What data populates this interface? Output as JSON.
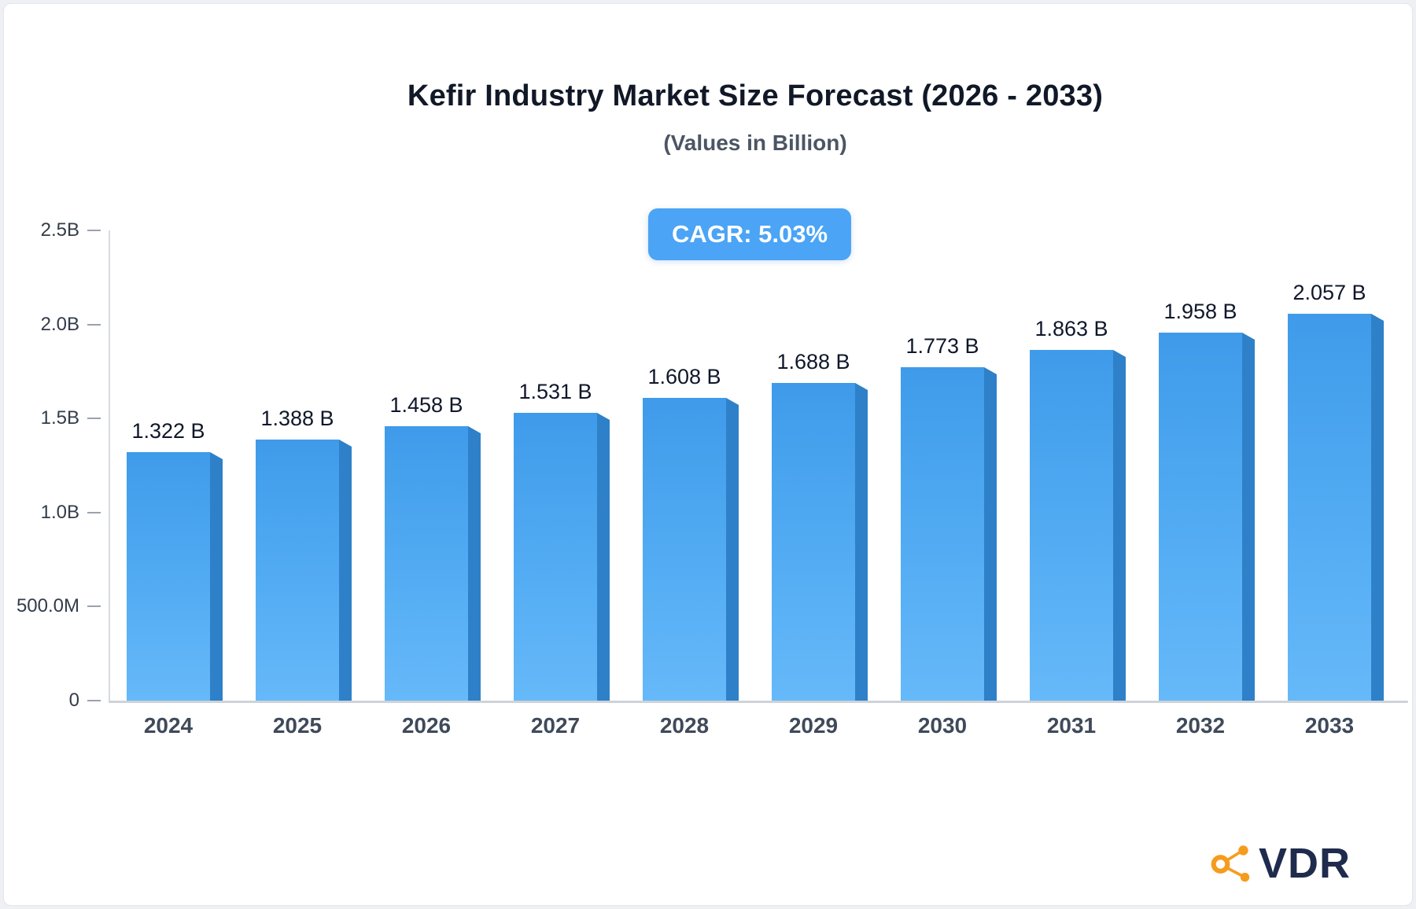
{
  "header": {
    "title": "Kefir Industry Market Size Forecast (2026 - 2033)",
    "subtitle": "(Values in Billion)"
  },
  "cagr_badge": {
    "label": "CAGR: 5.03%",
    "bg_color": "#4BA4F5"
  },
  "chart_data": {
    "type": "bar",
    "title": "Kefir Industry Market Size Forecast (2026 - 2033)",
    "subtitle": "(Values in Billion)",
    "categories": [
      "2024",
      "2025",
      "2026",
      "2027",
      "2028",
      "2029",
      "2030",
      "2031",
      "2032",
      "2033"
    ],
    "values": [
      1.322,
      1.388,
      1.458,
      1.531,
      1.608,
      1.688,
      1.773,
      1.863,
      1.958,
      2.057
    ],
    "value_labels": [
      "1.322 B",
      "1.388 B",
      "1.458 B",
      "1.531 B",
      "1.608 B",
      "1.688 B",
      "1.773 B",
      "1.863 B",
      "1.958 B",
      "2.057 B"
    ],
    "unit": "Billion",
    "xlabel": "",
    "ylabel": "",
    "ylim": [
      0,
      2.5
    ],
    "yticks": [
      {
        "label": "2.5B",
        "value": 2.5
      },
      {
        "label": "2.0B",
        "value": 2.0
      },
      {
        "label": "1.5B",
        "value": 1.5
      },
      {
        "label": "1.0B",
        "value": 1.0
      },
      {
        "label": "500.0M",
        "value": 0.5
      },
      {
        "label": "0",
        "value": 0
      }
    ],
    "grid": false,
    "legend_position": "none",
    "annotations": [
      "CAGR: 5.03%"
    ],
    "bar_colors": {
      "front_top": "#3F9BEA",
      "front_bottom": "#66B9F9",
      "side": "#2E81C8"
    }
  },
  "logo": {
    "text": "VDR",
    "icon": "network-nodes-icon",
    "icon_color": "#F59C1E",
    "text_color": "#1F2B4D"
  }
}
